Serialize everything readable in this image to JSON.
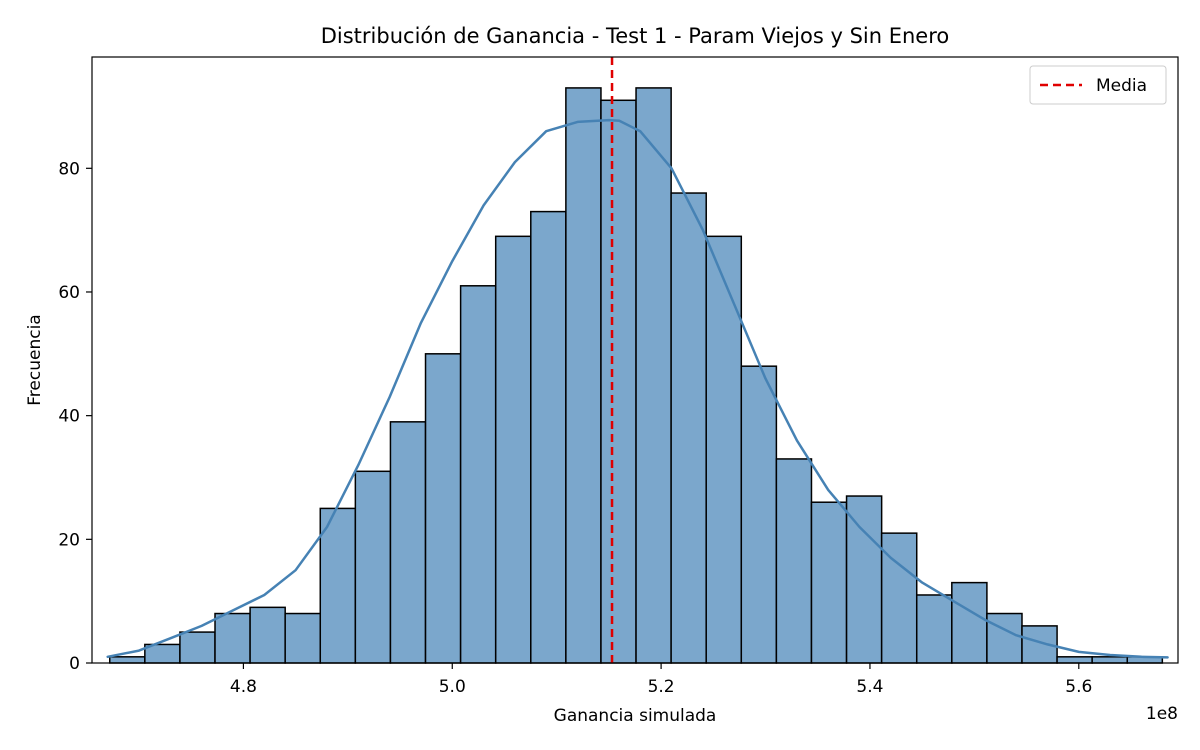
{
  "chart_data": {
    "type": "histogram",
    "title": "Distribución de Ganancia - Test 1 - Param Viejos y Sin Enero",
    "xlabel": "Ganancia simulada",
    "ylabel": "Frecuencia",
    "x_offset_text": "1e8",
    "xlim": [
      4.655,
      5.695
    ],
    "ylim": [
      0,
      98
    ],
    "xticks": [
      4.8,
      5.0,
      5.2,
      5.4,
      5.6
    ],
    "xtick_labels": [
      "4.8",
      "5.0",
      "5.2",
      "5.4",
      "5.6"
    ],
    "yticks": [
      0,
      20,
      40,
      60,
      80
    ],
    "ytick_labels": [
      "0",
      "20",
      "40",
      "60",
      "80"
    ],
    "bin_start": 4.672,
    "bin_width": 0.0336,
    "counts": [
      1,
      3,
      5,
      8,
      9,
      8,
      25,
      31,
      39,
      50,
      61,
      69,
      73,
      93,
      91,
      93,
      76,
      69,
      48,
      33,
      26,
      27,
      21,
      11,
      13,
      8,
      6,
      1,
      1,
      1
    ],
    "kde": {
      "x": [
        4.67,
        4.7,
        4.73,
        4.76,
        4.79,
        4.82,
        4.85,
        4.88,
        4.91,
        4.94,
        4.97,
        5.0,
        5.03,
        5.06,
        5.09,
        5.12,
        5.15,
        5.16,
        5.18,
        5.21,
        5.24,
        5.27,
        5.3,
        5.33,
        5.36,
        5.39,
        5.42,
        5.45,
        5.48,
        5.51,
        5.54,
        5.57,
        5.6,
        5.63,
        5.66,
        5.685
      ],
      "y": [
        1,
        2,
        4,
        6,
        8.5,
        11,
        15,
        22,
        32,
        43,
        55,
        65,
        74,
        81,
        86,
        87.5,
        87.8,
        87.7,
        86,
        80,
        70,
        58,
        46,
        36,
        28,
        22,
        17,
        13,
        10,
        7,
        4.5,
        3,
        1.8,
        1.3,
        1.0,
        0.9
      ]
    },
    "mean": 5.153,
    "colors": {
      "bar_fill": "#7ba7cc",
      "bar_edge": "#000000",
      "kde_line": "#4682b4",
      "mean_line": "#e00000"
    },
    "legend": {
      "position": "top-right",
      "entries": [
        {
          "label": "Media",
          "style": "red-dashed-line"
        }
      ]
    },
    "grid": false
  }
}
